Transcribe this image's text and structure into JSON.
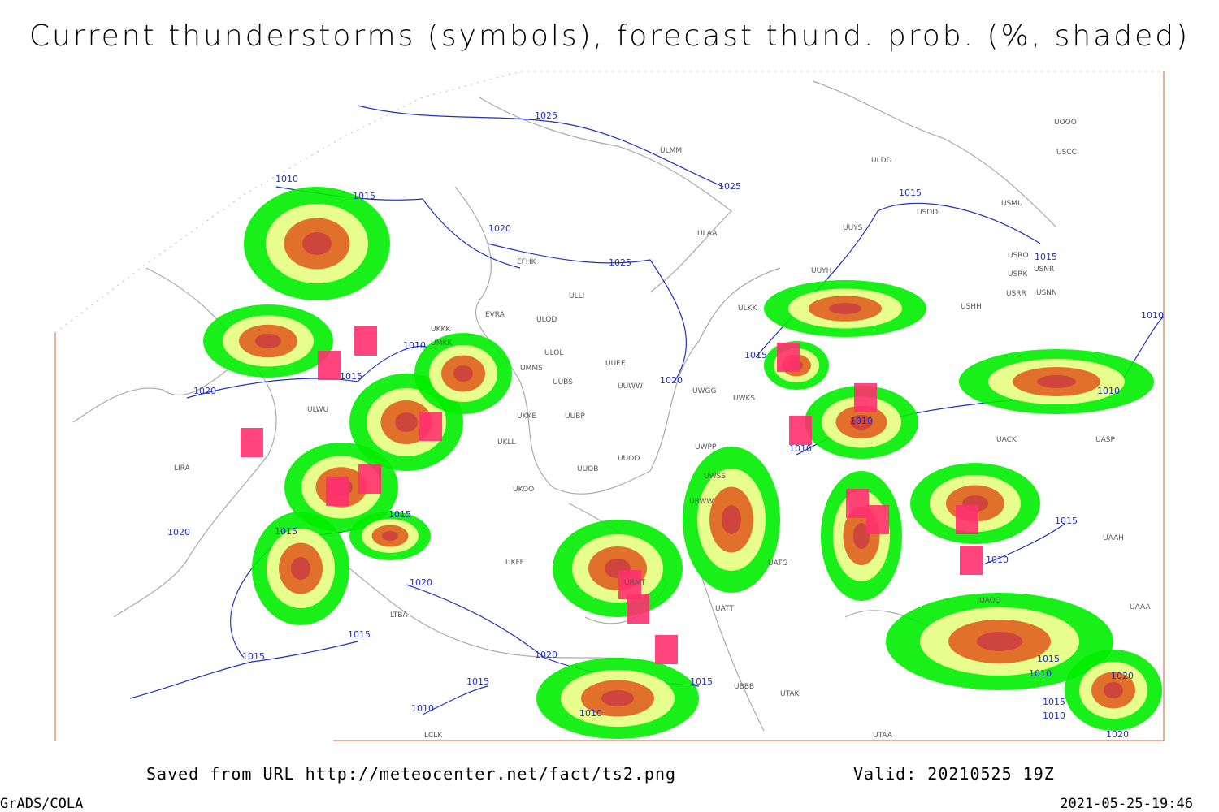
{
  "header": {
    "title": "Current thunderstorms (symbols), forecast thund. prob. (%, shaded)"
  },
  "map": {
    "isobar_labels": [
      "1025",
      "1010",
      "1015",
      "1020",
      "1025",
      "1025",
      "1015",
      "1015",
      "1010",
      "1010",
      "1015",
      "1020",
      "1020",
      "1015",
      "1010",
      "1010",
      "1015",
      "1015",
      "1020",
      "1020",
      "1015",
      "1010",
      "1015",
      "1015",
      "1020",
      "1015",
      "1015",
      "1010",
      "1010",
      "1010",
      "1015",
      "1010",
      "1020",
      "1015",
      "1010",
      "1020"
    ],
    "station_labels": [
      "ULMM",
      "ULDD",
      "UUYS",
      "USDD",
      "USMU",
      "ULAA",
      "USRO",
      "USRK",
      "USNR",
      "USRR",
      "USNN",
      "USHH",
      "UUYH",
      "ULLI",
      "ULKK",
      "ULOD",
      "ULOL",
      "UUEE",
      "UUWW",
      "UUBS",
      "UUBP",
      "UMMS",
      "UKKK",
      "UUOO",
      "UUOB",
      "UWGG",
      "UWKS",
      "UWPP",
      "UWSS",
      "URWW",
      "URMT",
      "UATG",
      "UATT",
      "UASP",
      "UACK",
      "UAAH",
      "UBBB",
      "UTAK",
      "UTAA",
      "LCLK",
      "LIRA",
      "LTBA",
      "ULWU",
      "UKKE",
      "UKLL",
      "UKOO",
      "UKFF",
      "UAOO",
      "UAAA",
      "EVRA",
      "EFHK",
      "UMKK",
      "USCC",
      "UOOO"
    ],
    "footer_url": "Saved from URL http://meteocenter.net/fact/ts2.png",
    "valid": "Valid: 20210525 19Z",
    "software": "GrADS/COLA",
    "timestamp": "2021-05-25-19:46"
  }
}
